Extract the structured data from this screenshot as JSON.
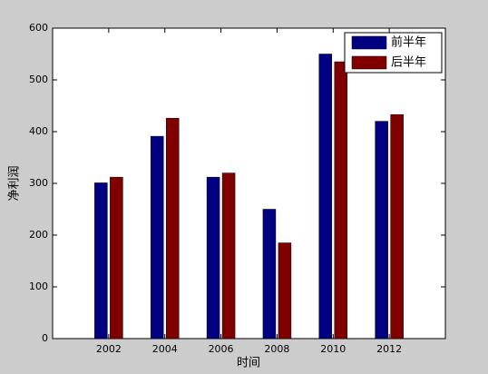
{
  "chart_data": {
    "type": "bar",
    "x": [
      2002,
      2004,
      2006,
      2008,
      2010,
      2012
    ],
    "series": [
      {
        "name": "前半年",
        "color": "#000080",
        "values": [
          301,
          391,
          312,
          250,
          550,
          420
        ]
      },
      {
        "name": "后半年",
        "color": "#800000",
        "values": [
          312,
          426,
          320,
          185,
          535,
          433
        ]
      }
    ],
    "xlabel": "时间",
    "ylabel": "净利润",
    "xlim": [
      2000,
      2014
    ],
    "xticks": [
      2002,
      2004,
      2006,
      2008,
      2010,
      2012
    ],
    "ylim": [
      0,
      600
    ],
    "yticks": [
      0,
      100,
      200,
      300,
      400,
      500,
      600
    ],
    "legend": "upper right"
  }
}
